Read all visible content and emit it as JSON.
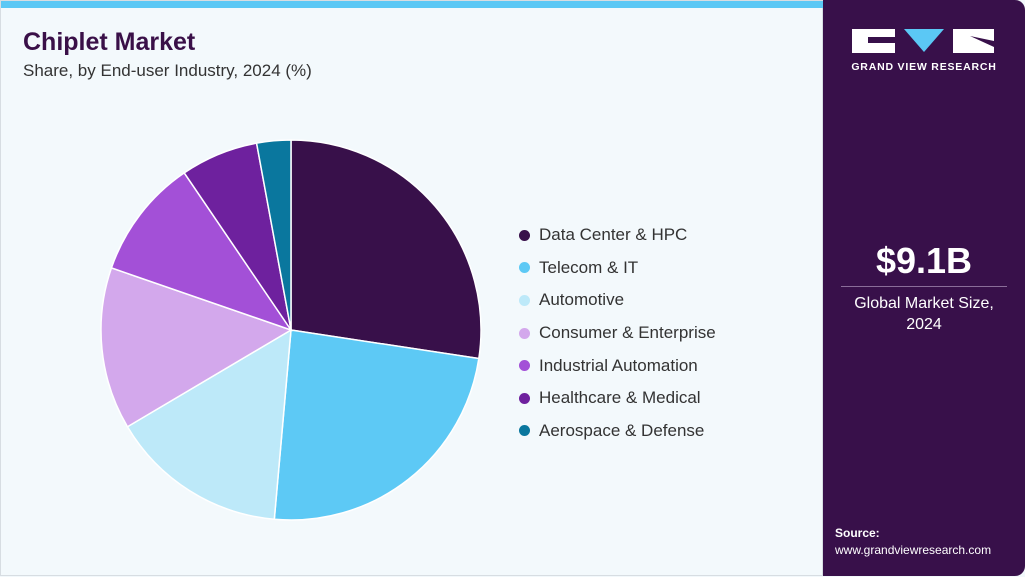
{
  "header": {
    "title": "Chiplet Market",
    "subtitle": "Share, by End-user Industry, 2024 (%)"
  },
  "sidebar": {
    "logo_text": "GRAND VIEW RESEARCH",
    "market_size": "$9.1B",
    "market_caption_line1": "Global Market Size,",
    "market_caption_line2": "2024",
    "source_label": "Source:",
    "source_url": "www.grandviewresearch.com"
  },
  "colors": {
    "accent": "#5bc8f5",
    "brand": "#38104a"
  },
  "chart_data": {
    "type": "pie",
    "title": "Chiplet Market",
    "subtitle": "Share, by End-user Industry, 2024 (%)",
    "legend_position": "right",
    "start": "top, clockwise",
    "categories": [
      "Data Center & HPC",
      "Telecom & IT",
      "Automotive",
      "Consumer & Enterprise",
      "Industrial Automation",
      "Healthcare & Medical",
      "Aerospace & Defense"
    ],
    "values": [
      27.4,
      24.0,
      15.1,
      13.8,
      10.2,
      6.6,
      2.9
    ],
    "colors": [
      "#38104a",
      "#5dc9f5",
      "#bde9f9",
      "#d3a8ec",
      "#a350d7",
      "#6e219e",
      "#0a779e"
    ]
  }
}
